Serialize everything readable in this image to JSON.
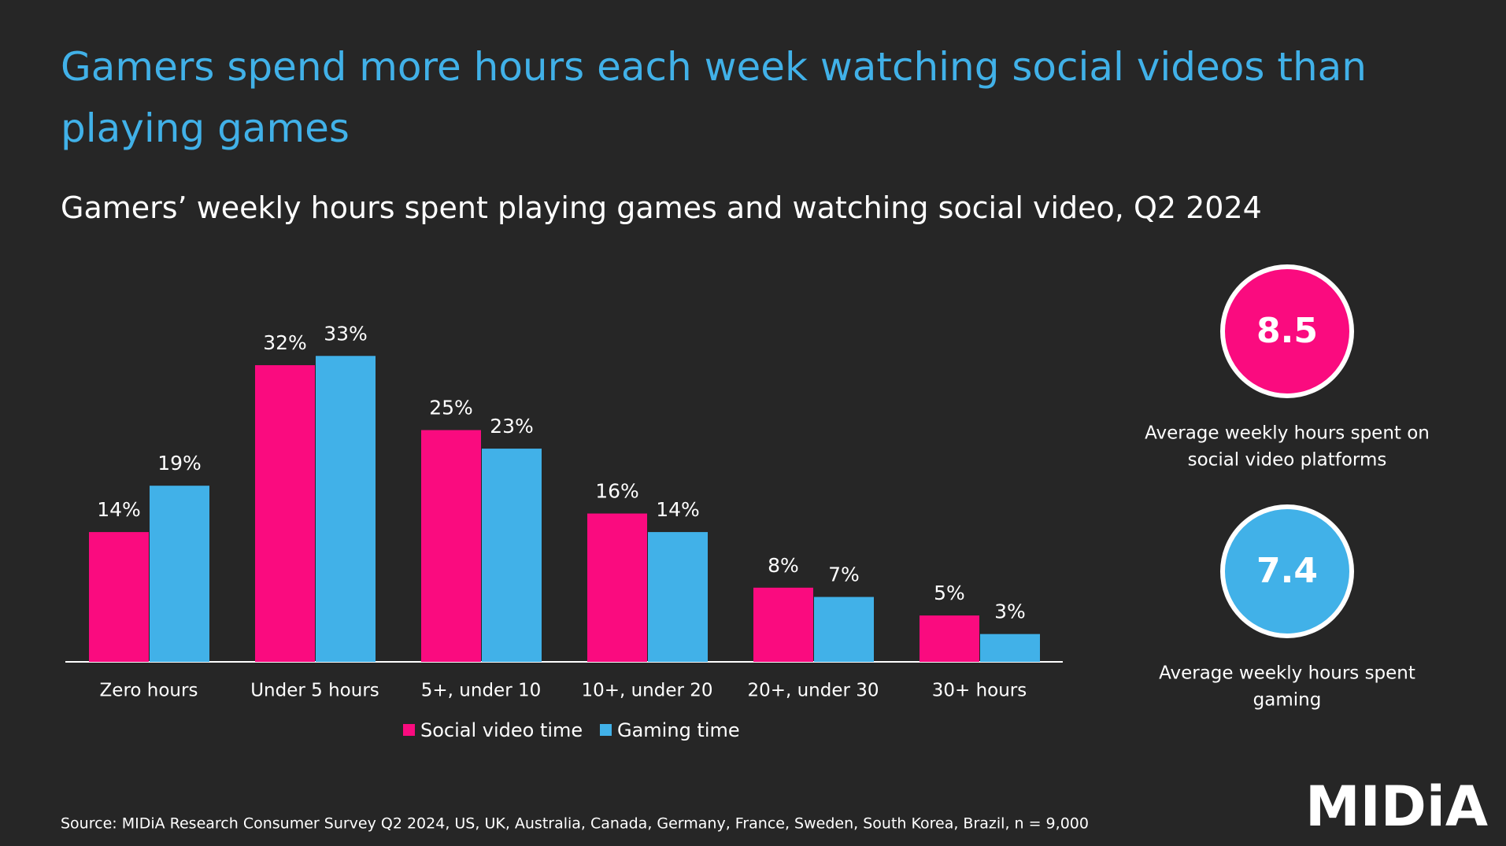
{
  "chart_data": {
    "type": "bar",
    "title": "Gamers spend more hours each week watching social videos than playing games",
    "subtitle": "Gamers’ weekly hours spent playing games and watching social video, Q2 2024",
    "categories": [
      "Zero hours",
      "Under 5 hours",
      "5+, under 10",
      "10+, under 20",
      "20+, under 30",
      "30+ hours"
    ],
    "series": [
      {
        "name": "Social video time",
        "color": "#fa0b7f",
        "values": [
          14,
          32,
          25,
          16,
          8,
          5
        ],
        "value_labels": [
          "14%",
          "32%",
          "25%",
          "16%",
          "8%",
          "5%"
        ]
      },
      {
        "name": "Gaming time",
        "color": "#41b1e8",
        "values": [
          19,
          33,
          23,
          14,
          7,
          3
        ],
        "value_labels": [
          "19%",
          "33%",
          "23%",
          "14%",
          "7%",
          "3%"
        ]
      }
    ],
    "source": "Source: MIDiA Research Consumer Survey Q2 2024, US, UK, Australia, Canada, Germany, France, Sweden, South Korea, Brazil, n = 9,000"
  },
  "stats": [
    {
      "value": "8.5",
      "color": "#fa0b7f",
      "caption": [
        "Average weekly hours spent on",
        "social video platforms"
      ]
    },
    {
      "value": "7.4",
      "color": "#41b1e8",
      "caption": [
        "Average weekly hours spent",
        "gaming"
      ]
    }
  ],
  "logo": "MIDiA"
}
